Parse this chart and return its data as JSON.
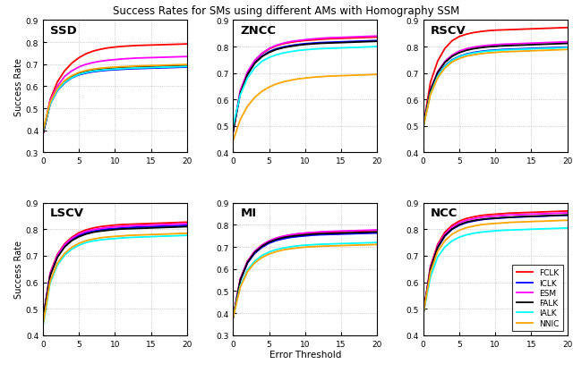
{
  "title": "Success Rates for SMs using different AMs with Homography SSM",
  "xlabel": "Error Threshold",
  "ylabel": "Success Rate",
  "legend_labels": [
    "FCLK",
    "ICLK",
    "ESM",
    "FALK",
    "IALK",
    "NNIC"
  ],
  "colors": [
    "#ff0000",
    "#0000ff",
    "#ff00ff",
    "#000000",
    "#00ffff",
    "#ffa500"
  ],
  "linewidth": 1.3,
  "subplots": [
    "SSD",
    "ZNCC",
    "RSCV",
    "LSCV",
    "MI",
    "NCC"
  ],
  "xlim": [
    0,
    20
  ],
  "x_ticks": [
    0,
    5,
    10,
    15,
    20
  ],
  "SSD": {
    "ylim": [
      0.3,
      0.9
    ],
    "y_ticks": [
      0.3,
      0.4,
      0.5,
      0.6,
      0.7,
      0.8,
      0.9
    ],
    "curves": {
      "FCLK": [
        0.38,
        0.54,
        0.62,
        0.67,
        0.705,
        0.73,
        0.748,
        0.76,
        0.768,
        0.774,
        0.778,
        0.781,
        0.783,
        0.785,
        0.786,
        0.787,
        0.788,
        0.789,
        0.79,
        0.791,
        0.792
      ],
      "ICLK": [
        0.385,
        0.52,
        0.58,
        0.615,
        0.638,
        0.652,
        0.66,
        0.666,
        0.67,
        0.673,
        0.675,
        0.677,
        0.679,
        0.68,
        0.681,
        0.682,
        0.683,
        0.684,
        0.685,
        0.686,
        0.687
      ],
      "ESM": [
        0.385,
        0.535,
        0.6,
        0.645,
        0.67,
        0.688,
        0.7,
        0.708,
        0.714,
        0.718,
        0.721,
        0.724,
        0.726,
        0.728,
        0.729,
        0.73,
        0.731,
        0.732,
        0.733,
        0.734,
        0.735
      ],
      "FALK": [
        0.385,
        0.525,
        0.587,
        0.622,
        0.645,
        0.66,
        0.669,
        0.675,
        0.679,
        0.682,
        0.684,
        0.686,
        0.688,
        0.689,
        0.69,
        0.691,
        0.692,
        0.693,
        0.694,
        0.695,
        0.696
      ],
      "IALK": [
        0.395,
        0.52,
        0.582,
        0.617,
        0.639,
        0.654,
        0.663,
        0.669,
        0.673,
        0.676,
        0.678,
        0.68,
        0.682,
        0.683,
        0.684,
        0.685,
        0.686,
        0.687,
        0.688,
        0.689,
        0.69
      ],
      "NNIC": [
        0.4,
        0.528,
        0.59,
        0.626,
        0.648,
        0.663,
        0.672,
        0.678,
        0.682,
        0.685,
        0.687,
        0.689,
        0.69,
        0.692,
        0.693,
        0.694,
        0.695,
        0.696,
        0.697,
        0.698,
        0.699
      ]
    }
  },
  "ZNCC": {
    "ylim": [
      0.4,
      0.9
    ],
    "y_ticks": [
      0.4,
      0.5,
      0.6,
      0.7,
      0.8,
      0.9
    ],
    "curves": {
      "FCLK": [
        0.48,
        0.63,
        0.7,
        0.745,
        0.773,
        0.791,
        0.803,
        0.811,
        0.816,
        0.82,
        0.823,
        0.825,
        0.827,
        0.829,
        0.83,
        0.831,
        0.832,
        0.833,
        0.834,
        0.835,
        0.836
      ],
      "ICLK": [
        0.48,
        0.625,
        0.695,
        0.738,
        0.764,
        0.781,
        0.792,
        0.799,
        0.804,
        0.808,
        0.811,
        0.813,
        0.815,
        0.816,
        0.817,
        0.818,
        0.819,
        0.82,
        0.821,
        0.822,
        0.823
      ],
      "ESM": [
        0.48,
        0.635,
        0.705,
        0.748,
        0.775,
        0.793,
        0.805,
        0.813,
        0.819,
        0.823,
        0.826,
        0.829,
        0.831,
        0.833,
        0.834,
        0.835,
        0.836,
        0.837,
        0.838,
        0.839,
        0.84
      ],
      "FALK": [
        0.48,
        0.625,
        0.695,
        0.737,
        0.762,
        0.778,
        0.789,
        0.796,
        0.801,
        0.805,
        0.808,
        0.81,
        0.812,
        0.813,
        0.814,
        0.815,
        0.816,
        0.817,
        0.818,
        0.819,
        0.82
      ],
      "IALK": [
        0.5,
        0.618,
        0.682,
        0.72,
        0.744,
        0.759,
        0.769,
        0.776,
        0.781,
        0.785,
        0.788,
        0.79,
        0.792,
        0.793,
        0.794,
        0.795,
        0.796,
        0.797,
        0.798,
        0.799,
        0.8
      ],
      "NNIC": [
        0.445,
        0.525,
        0.575,
        0.608,
        0.631,
        0.647,
        0.659,
        0.667,
        0.673,
        0.678,
        0.681,
        0.684,
        0.686,
        0.688,
        0.689,
        0.69,
        0.691,
        0.692,
        0.693,
        0.694,
        0.695
      ]
    }
  },
  "RSCV": {
    "ylim": [
      0.4,
      0.9
    ],
    "y_ticks": [
      0.4,
      0.5,
      0.6,
      0.7,
      0.8,
      0.9
    ],
    "curves": {
      "FCLK": [
        0.5,
        0.665,
        0.745,
        0.793,
        0.822,
        0.838,
        0.847,
        0.853,
        0.857,
        0.86,
        0.862,
        0.863,
        0.864,
        0.865,
        0.866,
        0.867,
        0.868,
        0.869,
        0.87,
        0.871,
        0.872
      ],
      "ICLK": [
        0.5,
        0.625,
        0.69,
        0.727,
        0.75,
        0.763,
        0.772,
        0.778,
        0.782,
        0.785,
        0.787,
        0.789,
        0.79,
        0.791,
        0.792,
        0.793,
        0.794,
        0.795,
        0.796,
        0.797,
        0.798
      ],
      "ESM": [
        0.5,
        0.638,
        0.705,
        0.744,
        0.768,
        0.783,
        0.792,
        0.798,
        0.802,
        0.805,
        0.807,
        0.809,
        0.81,
        0.811,
        0.812,
        0.813,
        0.814,
        0.815,
        0.816,
        0.817,
        0.818
      ],
      "FALK": [
        0.5,
        0.635,
        0.702,
        0.74,
        0.763,
        0.777,
        0.786,
        0.792,
        0.796,
        0.799,
        0.801,
        0.803,
        0.804,
        0.805,
        0.806,
        0.807,
        0.808,
        0.809,
        0.81,
        0.811,
        0.812
      ],
      "IALK": [
        0.495,
        0.622,
        0.688,
        0.725,
        0.748,
        0.762,
        0.77,
        0.776,
        0.78,
        0.783,
        0.785,
        0.787,
        0.788,
        0.789,
        0.79,
        0.791,
        0.792,
        0.793,
        0.794,
        0.795,
        0.796
      ],
      "NNIC": [
        0.495,
        0.618,
        0.682,
        0.719,
        0.742,
        0.755,
        0.764,
        0.769,
        0.773,
        0.776,
        0.778,
        0.78,
        0.781,
        0.782,
        0.783,
        0.784,
        0.785,
        0.786,
        0.787,
        0.788,
        0.789
      ]
    }
  },
  "LSCV": {
    "ylim": [
      0.4,
      0.9
    ],
    "y_ticks": [
      0.4,
      0.5,
      0.6,
      0.7,
      0.8,
      0.9
    ],
    "curves": {
      "FCLK": [
        0.46,
        0.635,
        0.705,
        0.745,
        0.77,
        0.787,
        0.798,
        0.805,
        0.81,
        0.813,
        0.816,
        0.818,
        0.819,
        0.82,
        0.821,
        0.822,
        0.823,
        0.824,
        0.825,
        0.826,
        0.827
      ],
      "ICLK": [
        0.46,
        0.628,
        0.697,
        0.737,
        0.761,
        0.777,
        0.787,
        0.793,
        0.798,
        0.801,
        0.803,
        0.805,
        0.807,
        0.808,
        0.809,
        0.81,
        0.811,
        0.812,
        0.813,
        0.814,
        0.815
      ],
      "ESM": [
        0.46,
        0.632,
        0.702,
        0.742,
        0.766,
        0.782,
        0.792,
        0.799,
        0.803,
        0.807,
        0.809,
        0.811,
        0.813,
        0.814,
        0.815,
        0.816,
        0.817,
        0.818,
        0.819,
        0.82,
        0.821
      ],
      "FALK": [
        0.46,
        0.625,
        0.694,
        0.733,
        0.757,
        0.772,
        0.782,
        0.789,
        0.793,
        0.796,
        0.799,
        0.801,
        0.802,
        0.803,
        0.804,
        0.805,
        0.806,
        0.807,
        0.808,
        0.809,
        0.81
      ],
      "IALK": [
        0.435,
        0.598,
        0.665,
        0.702,
        0.725,
        0.74,
        0.75,
        0.756,
        0.76,
        0.763,
        0.765,
        0.767,
        0.769,
        0.77,
        0.771,
        0.772,
        0.773,
        0.774,
        0.775,
        0.776,
        0.777
      ],
      "NNIC": [
        0.44,
        0.605,
        0.672,
        0.709,
        0.732,
        0.747,
        0.757,
        0.763,
        0.768,
        0.771,
        0.773,
        0.775,
        0.777,
        0.778,
        0.779,
        0.78,
        0.781,
        0.782,
        0.783,
        0.784,
        0.785
      ]
    }
  },
  "MI": {
    "ylim": [
      0.3,
      0.9
    ],
    "y_ticks": [
      0.3,
      0.4,
      0.5,
      0.6,
      0.7,
      0.8,
      0.9
    ],
    "curves": {
      "FCLK": [
        0.38,
        0.555,
        0.635,
        0.68,
        0.708,
        0.727,
        0.74,
        0.748,
        0.754,
        0.759,
        0.762,
        0.764,
        0.766,
        0.768,
        0.769,
        0.77,
        0.771,
        0.772,
        0.773,
        0.774,
        0.775
      ],
      "ICLK": [
        0.38,
        0.548,
        0.627,
        0.671,
        0.698,
        0.717,
        0.729,
        0.737,
        0.743,
        0.747,
        0.75,
        0.753,
        0.755,
        0.756,
        0.757,
        0.758,
        0.759,
        0.76,
        0.761,
        0.762,
        0.763
      ],
      "ESM": [
        0.38,
        0.555,
        0.635,
        0.68,
        0.708,
        0.727,
        0.74,
        0.749,
        0.755,
        0.76,
        0.763,
        0.766,
        0.768,
        0.77,
        0.771,
        0.772,
        0.773,
        0.774,
        0.775,
        0.776,
        0.777
      ],
      "FALK": [
        0.38,
        0.55,
        0.63,
        0.675,
        0.703,
        0.722,
        0.734,
        0.743,
        0.748,
        0.752,
        0.755,
        0.758,
        0.76,
        0.761,
        0.762,
        0.763,
        0.764,
        0.765,
        0.766,
        0.767,
        0.768
      ],
      "IALK": [
        0.38,
        0.525,
        0.596,
        0.636,
        0.661,
        0.677,
        0.688,
        0.695,
        0.701,
        0.705,
        0.708,
        0.71,
        0.712,
        0.713,
        0.714,
        0.715,
        0.716,
        0.717,
        0.718,
        0.719,
        0.72
      ],
      "NNIC": [
        0.38,
        0.518,
        0.588,
        0.628,
        0.652,
        0.668,
        0.679,
        0.687,
        0.692,
        0.696,
        0.699,
        0.701,
        0.703,
        0.704,
        0.705,
        0.706,
        0.707,
        0.708,
        0.709,
        0.71,
        0.711
      ]
    }
  },
  "NCC": {
    "ylim": [
      0.4,
      0.9
    ],
    "y_ticks": [
      0.4,
      0.5,
      0.6,
      0.7,
      0.8,
      0.9
    ],
    "curves": {
      "FCLK": [
        0.48,
        0.66,
        0.743,
        0.789,
        0.815,
        0.831,
        0.841,
        0.847,
        0.852,
        0.855,
        0.857,
        0.859,
        0.861,
        0.862,
        0.863,
        0.864,
        0.865,
        0.866,
        0.867,
        0.868,
        0.869
      ],
      "ICLK": [
        0.48,
        0.648,
        0.73,
        0.774,
        0.8,
        0.815,
        0.825,
        0.831,
        0.836,
        0.839,
        0.841,
        0.843,
        0.845,
        0.846,
        0.847,
        0.848,
        0.849,
        0.85,
        0.851,
        0.852,
        0.853
      ],
      "ESM": [
        0.48,
        0.655,
        0.738,
        0.782,
        0.808,
        0.824,
        0.834,
        0.84,
        0.845,
        0.848,
        0.85,
        0.852,
        0.854,
        0.855,
        0.856,
        0.857,
        0.858,
        0.859,
        0.86,
        0.861,
        0.862
      ],
      "FALK": [
        0.48,
        0.65,
        0.732,
        0.776,
        0.801,
        0.817,
        0.827,
        0.833,
        0.837,
        0.84,
        0.842,
        0.844,
        0.845,
        0.847,
        0.848,
        0.849,
        0.85,
        0.851,
        0.852,
        0.853,
        0.854
      ],
      "IALK": [
        0.48,
        0.62,
        0.695,
        0.733,
        0.756,
        0.77,
        0.779,
        0.785,
        0.789,
        0.792,
        0.794,
        0.796,
        0.797,
        0.798,
        0.799,
        0.8,
        0.801,
        0.802,
        0.803,
        0.804,
        0.805
      ],
      "NNIC": [
        0.48,
        0.638,
        0.716,
        0.757,
        0.781,
        0.796,
        0.806,
        0.812,
        0.817,
        0.82,
        0.822,
        0.824,
        0.826,
        0.827,
        0.828,
        0.829,
        0.83,
        0.831,
        0.832,
        0.833,
        0.834
      ]
    }
  }
}
